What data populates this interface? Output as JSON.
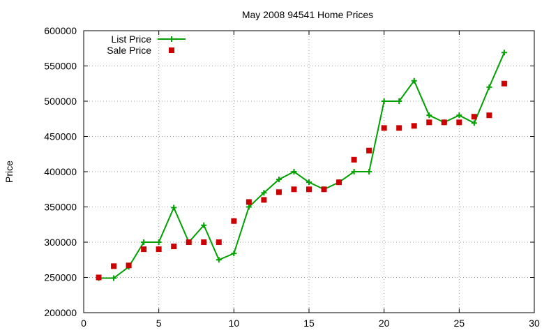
{
  "chart_data": {
    "type": "line",
    "title": "May 2008 94541 Home Prices",
    "xlabel": "",
    "ylabel": "Price",
    "xlim": [
      0,
      30
    ],
    "ylim": [
      200000,
      600000
    ],
    "x_ticks": [
      "0",
      "5",
      "10",
      "15",
      "20",
      "25",
      "30"
    ],
    "y_ticks": [
      "200000",
      "250000",
      "300000",
      "350000",
      "400000",
      "450000",
      "500000",
      "550000",
      "600000"
    ],
    "grid": true,
    "legend_position": "top-left",
    "series": [
      {
        "name": "List Price",
        "style": "line-with-plus-markers",
        "color": "#00a000",
        "x": [
          1,
          2,
          3,
          4,
          5,
          6,
          7,
          8,
          9,
          10,
          11,
          12,
          13,
          14,
          15,
          16,
          17,
          18,
          19,
          20,
          21,
          22,
          23,
          24,
          25,
          26,
          27,
          28
        ],
        "values": [
          249000,
          249000,
          265000,
          300000,
          300000,
          349000,
          300000,
          324000,
          275000,
          284000,
          350000,
          370000,
          389000,
          400000,
          385000,
          375000,
          385000,
          400000,
          400000,
          500000,
          500000,
          529000,
          480000,
          470000,
          480000,
          469000,
          520000,
          569000
        ]
      },
      {
        "name": "Sale Price",
        "style": "square-markers",
        "color": "#cc0000",
        "x": [
          1,
          2,
          3,
          4,
          5,
          6,
          7,
          8,
          9,
          10,
          11,
          12,
          13,
          14,
          15,
          16,
          17,
          18,
          19,
          20,
          21,
          22,
          23,
          24,
          25,
          26,
          27,
          28
        ],
        "values": [
          250000,
          266000,
          267000,
          290000,
          290000,
          294000,
          300000,
          300000,
          300000,
          330000,
          357000,
          360000,
          371000,
          375000,
          375000,
          375000,
          385000,
          417000,
          430000,
          462000,
          462000,
          465000,
          470000,
          470000,
          470000,
          478000,
          480000,
          525000
        ]
      }
    ]
  }
}
